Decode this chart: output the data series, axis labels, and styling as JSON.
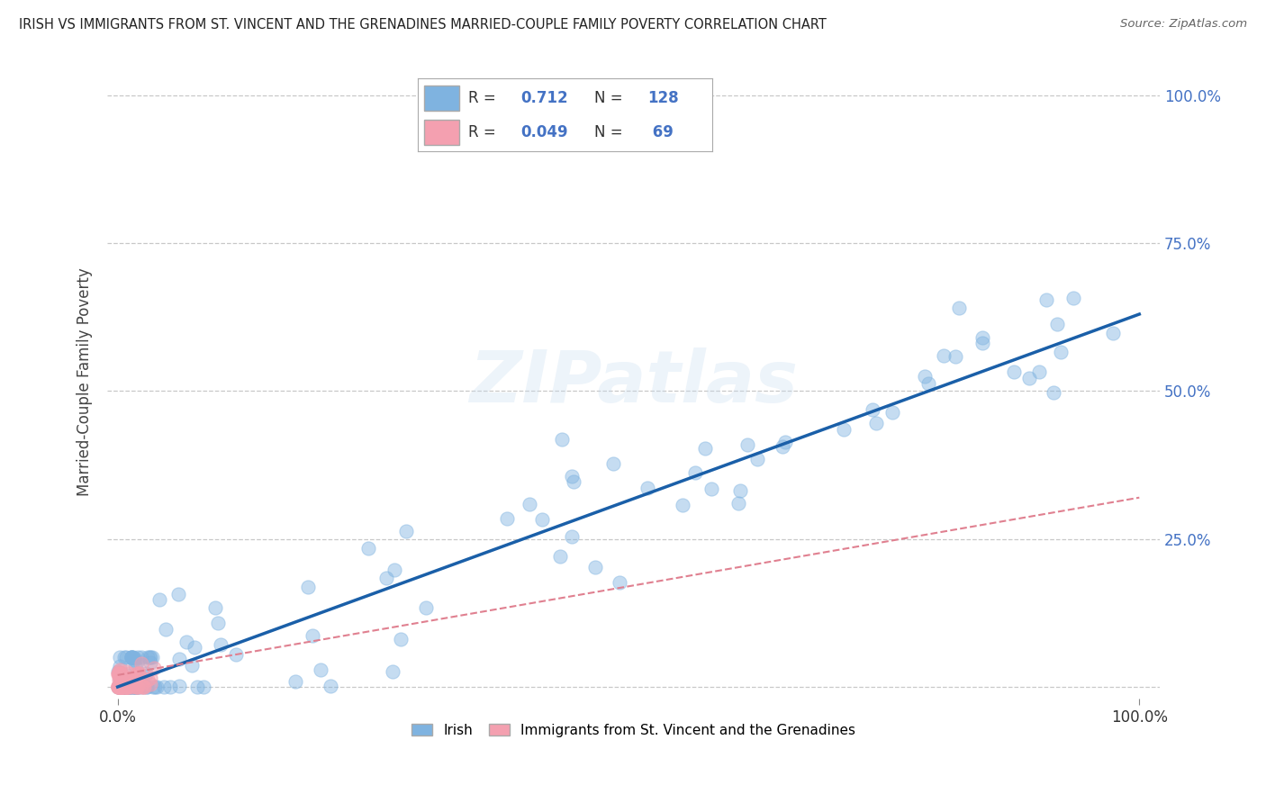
{
  "title": "IRISH VS IMMIGRANTS FROM ST. VINCENT AND THE GRENADINES MARRIED-COUPLE FAMILY POVERTY CORRELATION CHART",
  "source": "Source: ZipAtlas.com",
  "ylabel": "Married-Couple Family Poverty",
  "legend_irish_r": "0.712",
  "legend_irish_n": "128",
  "legend_svg_r": "0.049",
  "legend_svg_n": "69",
  "watermark": "ZIPatlas",
  "irish_color": "#7fb3e0",
  "svg_color": "#f4a0b0",
  "irish_line_color": "#1a5fa8",
  "svg_line_color": "#e08090",
  "background_color": "#ffffff",
  "grid_color": "#c8c8c8",
  "irish_slope": 0.63,
  "irish_intercept": 0.0,
  "svg_slope": 0.3,
  "svg_intercept": 0.02
}
